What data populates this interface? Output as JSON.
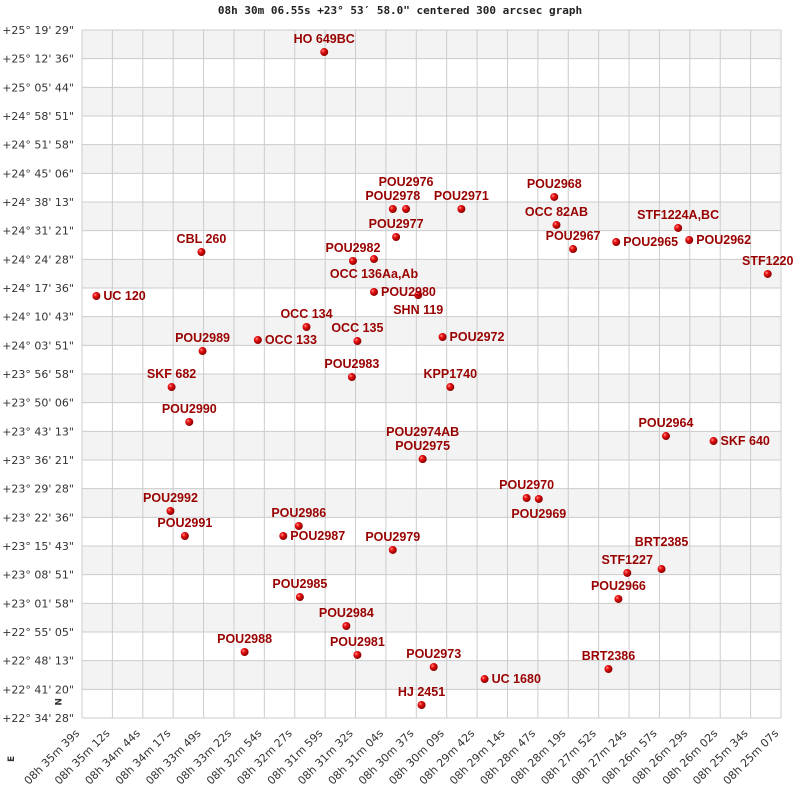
{
  "chart_data": {
    "type": "scatter",
    "title": "08h 30m 06.55s +23° 53′ 58.0\" centered 300 arcsec graph",
    "xlabel": "",
    "ylabel": "",
    "grid": true,
    "xlim": [
      "08h 35m 39s",
      "08h 25m 07s"
    ],
    "ylim": [
      "+22° 34' 28\"",
      "+25° 19' 29\""
    ],
    "compass": {
      "north": "N",
      "east": "E"
    },
    "colors": {
      "marker": "#d40000",
      "label": "#990000",
      "band": "#f3f3f3",
      "grid": "#cccccc"
    },
    "x_ticks": [
      "08h 35m 39s",
      "08h 35m 12s",
      "08h 34m 44s",
      "08h 34m 17s",
      "08h 33m 49s",
      "08h 33m 22s",
      "08h 32m 54s",
      "08h 32m 27s",
      "08h 31m 59s",
      "08h 31m 32s",
      "08h 31m 04s",
      "08h 30m 37s",
      "08h 30m 09s",
      "08h 29m 42s",
      "08h 29m 14s",
      "08h 28m 47s",
      "08h 28m 19s",
      "08h 27m 52s",
      "08h 27m 24s",
      "08h 26m 57s",
      "08h 26m 29s",
      "08h 26m 02s",
      "08h 25m 34s",
      "08h 25m 07s"
    ],
    "y_ticks": [
      "+25° 19' 29\"",
      "+25° 12' 36\"",
      "+25° 05' 44\"",
      "+24° 58' 51\"",
      "+24° 51' 58\"",
      "+24° 45' 06\"",
      "+24° 38' 13\"",
      "+24° 31' 21\"",
      "+24° 24' 28\"",
      "+24° 17' 36\"",
      "+24° 10' 43\"",
      "+24° 03' 51\"",
      "+23° 56' 58\"",
      "+23° 50' 06\"",
      "+23° 43' 13\"",
      "+23° 36' 21\"",
      "+23° 29' 28\"",
      "+23° 22' 36\"",
      "+23° 15' 43\"",
      "+23° 08' 51\"",
      "+23° 01' 58\"",
      "+22° 55' 05\"",
      "+22° 48' 13\"",
      "+22° 41' 20\"",
      "+22° 34' 28\""
    ],
    "points": [
      {
        "name": "HO  649BC",
        "ra": "08h 32m 00s",
        "dec": "+25° 14' 12\""
      },
      {
        "name": "POU2978",
        "ra": "08h 30m 58s",
        "dec": "+24° 36' 33\""
      },
      {
        "name": "POU2976",
        "ra": "08h 30m 46s",
        "dec": "+24° 36' 33\""
      },
      {
        "name": "POU2971",
        "ra": "08h 29m 56s",
        "dec": "+24° 36' 33\""
      },
      {
        "name": "POU2977",
        "ra": "08h 30m 55s",
        "dec": "+24° 29' 50\""
      },
      {
        "name": "CBL 260",
        "ra": "08h 33m 51s",
        "dec": "+24° 26' 14\""
      },
      {
        "name": "POU2982",
        "ra": "08h 31m 34s",
        "dec": "+24° 24' 05\""
      },
      {
        "name": "OCC 136Aa,Ab",
        "ra": "08h 31m 15s",
        "dec": "+24° 24' 33\""
      },
      {
        "name": "UC  120",
        "ra": "08h 35m 26s",
        "dec": "+24° 15' 41\""
      },
      {
        "name": "POU2980",
        "ra": "08h 31m 15s",
        "dec": "+24° 16' 39\""
      },
      {
        "name": "SHN 119",
        "ra": "08h 30m 35s",
        "dec": "+24° 15' 55\""
      },
      {
        "name": "OCC 134",
        "ra": "08h 32m 16s",
        "dec": "+24° 08' 15\""
      },
      {
        "name": "OCC 133",
        "ra": "08h 33m 00s",
        "dec": "+24° 05' 08\""
      },
      {
        "name": "POU2989",
        "ra": "08h 33m 50s",
        "dec": "+24° 02' 29\""
      },
      {
        "name": "OCC 135",
        "ra": "08h 31m 30s",
        "dec": "+24° 04' 53\""
      },
      {
        "name": "POU2972",
        "ra": "08h 30m 13s",
        "dec": "+24° 05' 51\""
      },
      {
        "name": "POU2983",
        "ra": "08h 31m 35s",
        "dec": "+23° 56' 15\""
      },
      {
        "name": "KPP1740",
        "ra": "08h 30m 06s",
        "dec": "+23° 53' 51\""
      },
      {
        "name": "SKF 682",
        "ra": "08h 34m 18s",
        "dec": "+23° 53' 51\""
      },
      {
        "name": "POU2990",
        "ra": "08h 34m 02s",
        "dec": "+23° 45' 28\""
      },
      {
        "name": "POU2968",
        "ra": "08h 28m 32s",
        "dec": "+24° 39' 26\""
      },
      {
        "name": "OCC  82AB",
        "ra": "08h 28m 30s",
        "dec": "+24° 32' 43\""
      },
      {
        "name": "POU2967",
        "ra": "08h 28m 15s",
        "dec": "+24° 26' 57\""
      },
      {
        "name": "POU2965",
        "ra": "08h 27m 36s",
        "dec": "+24° 28' 38\""
      },
      {
        "name": "STF1224A,BC",
        "ra": "08h 26m 40s",
        "dec": "+24° 32' 00\""
      },
      {
        "name": "POU2962",
        "ra": "08h 26m 30s",
        "dec": "+24° 29' 07\""
      },
      {
        "name": "STF1220",
        "ra": "08h 25m 19s",
        "dec": "+24° 20' 58\""
      },
      {
        "name": "POU2975",
        "ra": "08h 30m 31s",
        "dec": "+23° 36' 35\""
      },
      {
        "name": "POU2974AB",
        "ra": "08h 30m 31s",
        "dec": "+23° 36' 35\""
      },
      {
        "name": "POU2992",
        "ra": "08h 34m 19s",
        "dec": "+23° 24' 07\""
      },
      {
        "name": "POU2991",
        "ra": "08h 34m 06s",
        "dec": "+23° 18' 07\""
      },
      {
        "name": "POU2986",
        "ra": "08h 32m 23s",
        "dec": "+23° 20' 31\""
      },
      {
        "name": "POU2987",
        "ra": "08h 32m 37s",
        "dec": "+23° 18' 07\""
      },
      {
        "name": "POU2979",
        "ra": "08h 30m 58s",
        "dec": "+23° 14' 46\""
      },
      {
        "name": "POU2985",
        "ra": "08h 32m 22s",
        "dec": "+23° 03' 29\""
      },
      {
        "name": "POU2984",
        "ra": "08h 31m 40s",
        "dec": "+22° 56' 32\""
      },
      {
        "name": "POU2988",
        "ra": "08h 33m 12s",
        "dec": "+22° 50' 18\""
      },
      {
        "name": "POU2981",
        "ra": "08h 31m 30s",
        "dec": "+22° 49' 35\""
      },
      {
        "name": "POU2973",
        "ra": "08h 30m 21s",
        "dec": "+22° 46' 42\""
      },
      {
        "name": "UC 1680",
        "ra": "08h 29m 35s",
        "dec": "+22° 43' 49\""
      },
      {
        "name": "HJ 2451",
        "ra": "08h 30m 32s",
        "dec": "+22° 37' 35\""
      },
      {
        "name": "POU2964",
        "ra": "08h 26m 51s",
        "dec": "+23° 42' 06\""
      },
      {
        "name": "SKF 640",
        "ra": "08h 26m 08s",
        "dec": "+23° 40' 54\""
      },
      {
        "name": "POU2970",
        "ra": "08h 28m 57s",
        "dec": "+23° 27' 14\""
      },
      {
        "name": "POU2969",
        "ra": "08h 28m 46s",
        "dec": "+23° 27' 00\""
      },
      {
        "name": "STF1227",
        "ra": "08h 27m 26s",
        "dec": "+23° 09' 15\""
      },
      {
        "name": "BRT2385",
        "ra": "08h 26m 55s",
        "dec": "+23° 10' 12\""
      },
      {
        "name": "POU2966",
        "ra": "08h 27m 34s",
        "dec": "+23° 03' 01\""
      },
      {
        "name": "BRT2386",
        "ra": "08h 27m 43s",
        "dec": "+22° 46' 13\""
      }
    ]
  }
}
